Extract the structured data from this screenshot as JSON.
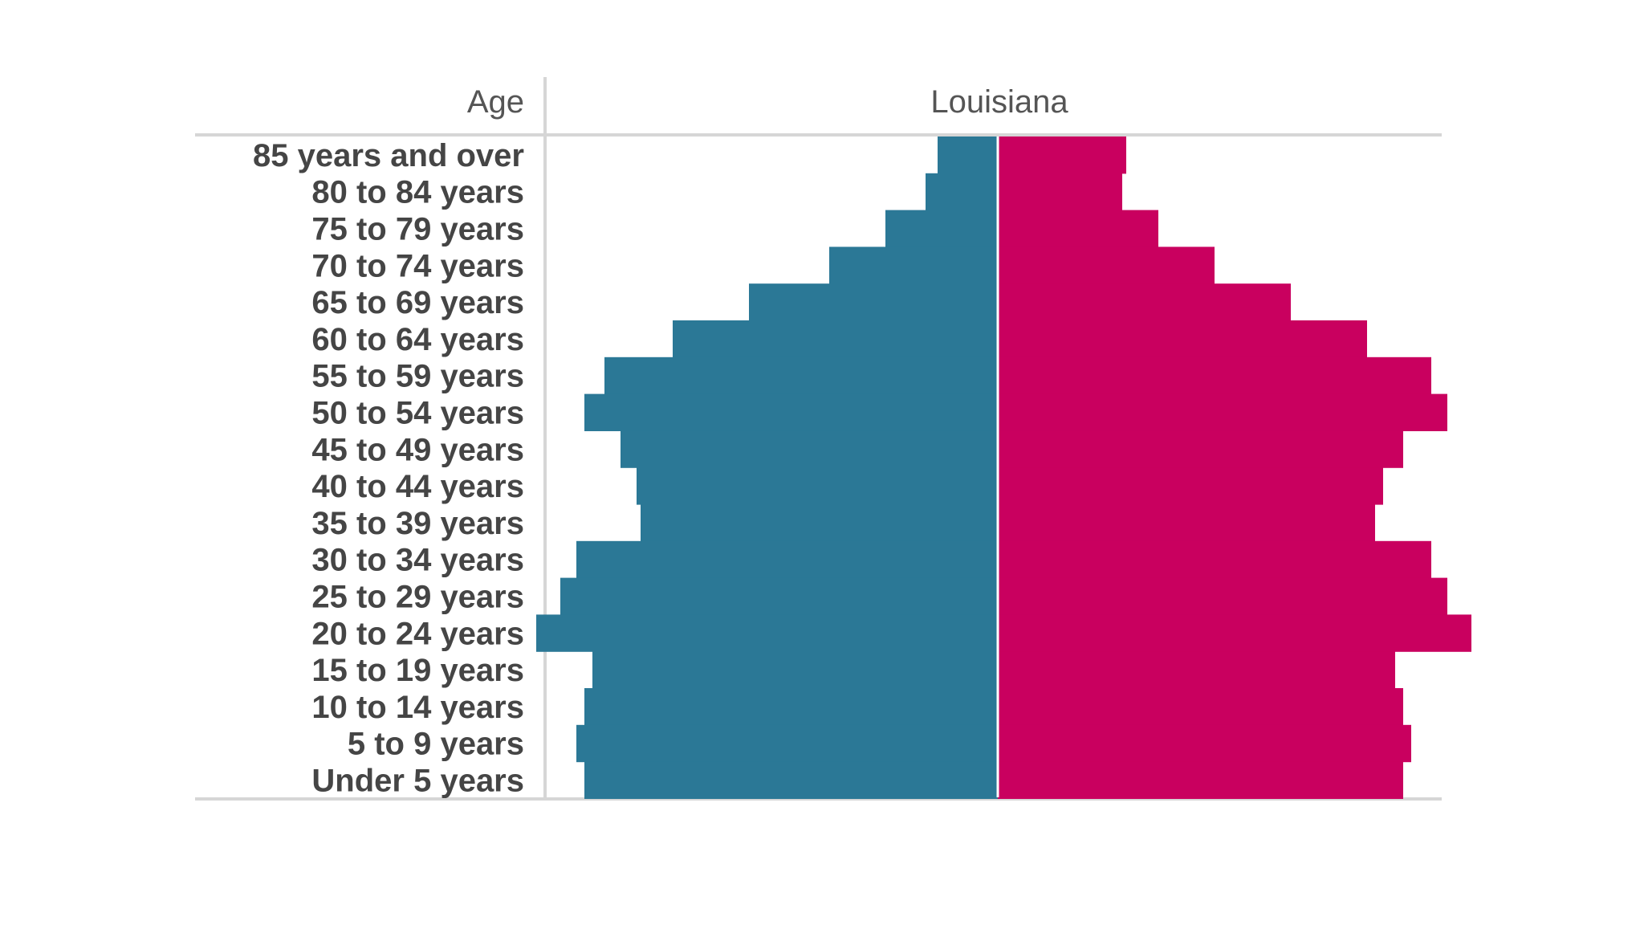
{
  "header": {
    "age_label": "Age",
    "region_label": "Louisiana"
  },
  "colors": {
    "male": "#2b7896",
    "female": "#c9005f",
    "divider": "#ffffff",
    "rule": "#d6d6d6"
  },
  "chart_data": {
    "type": "bar",
    "orientation": "horizontal",
    "layout": "population-pyramid",
    "title": "Louisiana",
    "categories": [
      "85 years and over",
      "80 to 84 years",
      "75 to 79 years",
      "70 to 74 years",
      "65 to 69 years",
      "60 to 64 years",
      "55 to 59 years",
      "50 to 54 years",
      "45 to 49 years",
      "40 to 44 years",
      "35 to 39 years",
      "30 to 34 years",
      "25 to 29 years",
      "20 to 24 years",
      "15 to 19 years",
      "10 to 14 years",
      "5 to 9 years",
      "Under 5 years"
    ],
    "series": [
      {
        "color": "#2b7896",
        "side": "left",
        "values": [
          1.5,
          1.8,
          2.8,
          4.2,
          6.2,
          8.1,
          9.8,
          10.3,
          9.4,
          9.0,
          8.9,
          10.5,
          10.9,
          11.5,
          10.1,
          10.3,
          10.5,
          10.3
        ]
      },
      {
        "color": "#c9005f",
        "side": "right",
        "values": [
          3.2,
          3.1,
          4.0,
          5.4,
          7.3,
          9.2,
          10.8,
          11.2,
          10.1,
          9.6,
          9.4,
          10.8,
          11.2,
          11.8,
          9.9,
          10.1,
          10.3,
          10.1
        ]
      }
    ],
    "xlim": [
      0,
      12
    ],
    "grid": false,
    "legend": "none"
  }
}
